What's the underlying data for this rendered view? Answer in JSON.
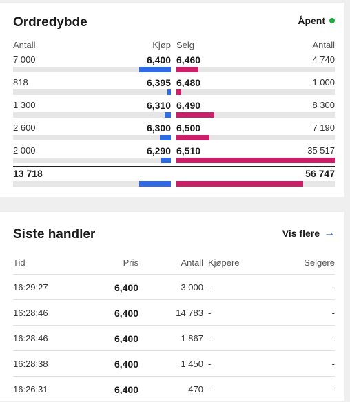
{
  "orderbook": {
    "title": "Ordredybde",
    "status": "Åpent",
    "headers": {
      "bid_qty": "Antall",
      "bid_price": "Kjøp",
      "ask_price": "Selg",
      "ask_qty": "Antall"
    },
    "rows": [
      {
        "bid_qty": "7 000",
        "bid_price": "6,400",
        "ask_price": "6,460",
        "ask_qty": "4 740",
        "bid_fill": 0.2,
        "ask_fill": 0.14
      },
      {
        "bid_qty": "818",
        "bid_price": "6,395",
        "ask_price": "6,480",
        "ask_qty": "1 000",
        "bid_fill": 0.02,
        "ask_fill": 0.03
      },
      {
        "bid_qty": "1 300",
        "bid_price": "6,310",
        "ask_price": "6,490",
        "ask_qty": "8 300",
        "bid_fill": 0.04,
        "ask_fill": 0.24
      },
      {
        "bid_qty": "2 600",
        "bid_price": "6,300",
        "ask_price": "6,500",
        "ask_qty": "7 190",
        "bid_fill": 0.07,
        "ask_fill": 0.21
      },
      {
        "bid_qty": "2 000",
        "bid_price": "6,290",
        "ask_price": "6,510",
        "ask_qty": "35 517",
        "bid_fill": 0.06,
        "ask_fill": 1.0
      }
    ],
    "total": {
      "bid_qty": "13 718",
      "ask_qty": "56 747",
      "bid_fill": 0.2,
      "ask_fill": 0.8
    },
    "colors": {
      "bid": "#2f6be6",
      "ask": "#cc1f6a",
      "open": "#1eaa3c"
    }
  },
  "trades": {
    "title": "Siste handler",
    "more_label": "Vis flere",
    "headers": {
      "time": "Tid",
      "price": "Pris",
      "qty": "Antall",
      "buyer": "Kjøpere",
      "seller": "Selgere"
    },
    "rows": [
      {
        "time": "16:29:27",
        "price": "6,400",
        "qty": "3 000",
        "buyer": "-",
        "seller": "-"
      },
      {
        "time": "16:28:46",
        "price": "6,400",
        "qty": "14 783",
        "buyer": "-",
        "seller": "-"
      },
      {
        "time": "16:28:46",
        "price": "6,400",
        "qty": "1 867",
        "buyer": "-",
        "seller": "-"
      },
      {
        "time": "16:28:38",
        "price": "6,400",
        "qty": "1 450",
        "buyer": "-",
        "seller": "-"
      },
      {
        "time": "16:26:31",
        "price": "6,400",
        "qty": "470",
        "buyer": "-",
        "seller": "-"
      }
    ]
  }
}
